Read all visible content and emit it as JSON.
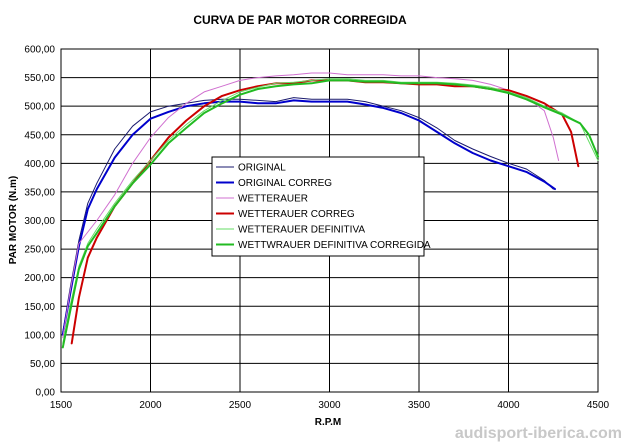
{
  "chart_data": {
    "type": "line",
    "title": "CURVA DE PAR MOTOR CORREGIDA",
    "xlabel": "R.P.M",
    "ylabel": "PAR MOTOR (N.m)",
    "xlim": [
      1500,
      4500
    ],
    "ylim": [
      0,
      600
    ],
    "xticks": [
      1500,
      2000,
      2500,
      3000,
      3500,
      4000,
      4500
    ],
    "xtick_labels": [
      "1500",
      "2000",
      "2500",
      "3000",
      "3500",
      "4000",
      "4500"
    ],
    "yticks": [
      0,
      50,
      100,
      150,
      200,
      250,
      300,
      350,
      400,
      450,
      500,
      550,
      600
    ],
    "ytick_labels": [
      "0,00",
      "50,00",
      "100,00",
      "150,00",
      "200,00",
      "250,00",
      "300,00",
      "350,00",
      "400,00",
      "450,00",
      "500,00",
      "550,00",
      "600,00"
    ],
    "grid": true,
    "legend_position": "center-left",
    "series": [
      {
        "name": "ORIGINAL",
        "color": "#1a1a6e",
        "width": 1,
        "x": [
          1510,
          1550,
          1600,
          1650,
          1700,
          1800,
          1900,
          2000,
          2100,
          2200,
          2300,
          2400,
          2500,
          2600,
          2700,
          2800,
          2900,
          3000,
          3100,
          3200,
          3300,
          3400,
          3500,
          3600,
          3700,
          3800,
          3900,
          4000,
          4100,
          4200,
          4250
        ],
        "y": [
          105,
          180,
          265,
          330,
          365,
          425,
          465,
          490,
          500,
          505,
          510,
          512,
          512,
          510,
          508,
          515,
          512,
          512,
          512,
          508,
          500,
          492,
          480,
          462,
          440,
          425,
          412,
          400,
          390,
          370,
          355
        ]
      },
      {
        "name": "ORIGINAL CORREG",
        "color": "#0000cc",
        "width": 2,
        "x": [
          1510,
          1550,
          1600,
          1650,
          1700,
          1800,
          1900,
          2000,
          2100,
          2200,
          2300,
          2400,
          2500,
          2600,
          2700,
          2800,
          2900,
          3000,
          3100,
          3200,
          3300,
          3400,
          3500,
          3600,
          3700,
          3800,
          3900,
          4000,
          4100,
          4200,
          4260
        ],
        "y": [
          100,
          170,
          255,
          320,
          355,
          410,
          450,
          478,
          490,
          500,
          505,
          508,
          508,
          505,
          505,
          510,
          508,
          508,
          508,
          503,
          497,
          488,
          475,
          455,
          435,
          418,
          405,
          395,
          385,
          368,
          355
        ]
      },
      {
        "name": "WETTERAUER",
        "color": "#d070d0",
        "width": 1,
        "x": [
          1510,
          1550,
          1600,
          1700,
          1800,
          1900,
          2000,
          2100,
          2200,
          2300,
          2400,
          2500,
          2600,
          2700,
          2800,
          2900,
          3000,
          3100,
          3200,
          3300,
          3400,
          3500,
          3600,
          3700,
          3800,
          3900,
          4000,
          4100,
          4200,
          4250,
          4280
        ],
        "y": [
          95,
          175,
          260,
          300,
          345,
          400,
          445,
          480,
          505,
          525,
          535,
          545,
          550,
          553,
          555,
          558,
          558,
          555,
          555,
          555,
          553,
          553,
          550,
          548,
          545,
          538,
          528,
          515,
          492,
          445,
          405
        ]
      },
      {
        "name": "WETTERAUER CORREG",
        "color": "#cc0000",
        "width": 2,
        "x": [
          1560,
          1600,
          1650,
          1700,
          1800,
          1900,
          2000,
          2100,
          2200,
          2300,
          2400,
          2500,
          2600,
          2700,
          2800,
          2900,
          3000,
          3100,
          3200,
          3300,
          3400,
          3500,
          3600,
          3700,
          3800,
          3900,
          4000,
          4100,
          4200,
          4300,
          4350,
          4390
        ],
        "y": [
          85,
          165,
          235,
          270,
          325,
          365,
          405,
          445,
          475,
          500,
          518,
          528,
          535,
          540,
          540,
          545,
          545,
          545,
          542,
          542,
          540,
          538,
          538,
          535,
          535,
          530,
          528,
          518,
          505,
          485,
          455,
          395
        ]
      },
      {
        "name": "WETTERAUER DEFINITIVA",
        "color": "#66dd66",
        "width": 1,
        "x": [
          1510,
          1550,
          1600,
          1650,
          1700,
          1800,
          1900,
          2000,
          2100,
          2200,
          2300,
          2400,
          2500,
          2600,
          2700,
          2800,
          2900,
          3000,
          3100,
          3200,
          3300,
          3400,
          3500,
          3600,
          3700,
          3800,
          3900,
          4000,
          4100,
          4200,
          4300,
          4400,
          4500
        ],
        "y": [
          85,
          150,
          220,
          260,
          285,
          330,
          370,
          405,
          440,
          468,
          492,
          510,
          525,
          533,
          540,
          542,
          545,
          548,
          548,
          545,
          545,
          542,
          542,
          542,
          540,
          537,
          533,
          525,
          515,
          500,
          488,
          470,
          405
        ]
      },
      {
        "name": "WETTWRAUER DEFINITIVA CORREGIDA",
        "color": "#22bb22",
        "width": 2,
        "x": [
          1510,
          1550,
          1600,
          1650,
          1700,
          1800,
          1900,
          2000,
          2100,
          2200,
          2300,
          2400,
          2500,
          2600,
          2700,
          2800,
          2900,
          3000,
          3100,
          3200,
          3300,
          3400,
          3500,
          3600,
          3700,
          3800,
          3900,
          4000,
          4100,
          4200,
          4300,
          4400,
          4450,
          4500
        ],
        "y": [
          78,
          140,
          215,
          255,
          278,
          325,
          365,
          398,
          435,
          462,
          488,
          505,
          520,
          530,
          535,
          538,
          540,
          545,
          545,
          543,
          543,
          540,
          540,
          540,
          538,
          535,
          530,
          523,
          512,
          498,
          485,
          470,
          450,
          412
        ]
      }
    ]
  },
  "watermark": "audisport-iberica.com"
}
